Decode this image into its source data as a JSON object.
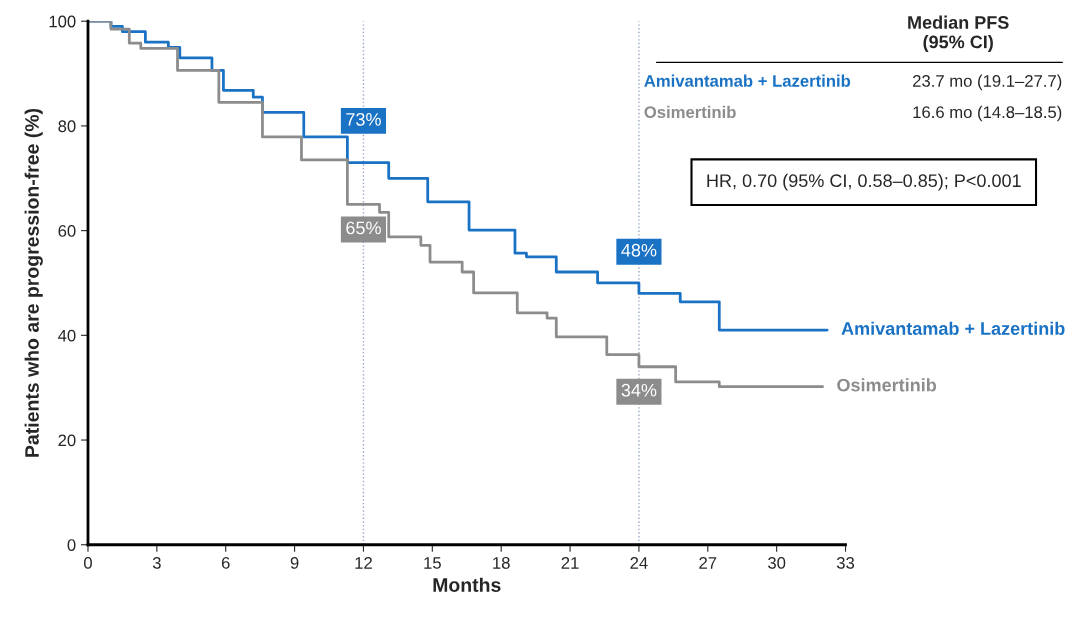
{
  "chart_data": {
    "type": "step",
    "xlabel": "Months",
    "ylabel": "Patients who are progression-free (%)",
    "xlim": [
      0,
      33
    ],
    "ylim": [
      0,
      100
    ],
    "xticks": [
      0,
      3,
      6,
      9,
      12,
      15,
      18,
      21,
      24,
      27,
      30,
      33
    ],
    "yticks": [
      0,
      20,
      40,
      60,
      80,
      100
    ],
    "grid": false,
    "legend": false,
    "line_style": "solid",
    "series": [
      {
        "name": "Amivantamab + Lazertinib",
        "color": "#1a72c4",
        "x": [
          0,
          1.0,
          1.5,
          2.5,
          3.5,
          4.0,
          5.4,
          5.9,
          7.2,
          7.6,
          9.4,
          11.3,
          12,
          12.6,
          13.1,
          14.8,
          16.6,
          18.6,
          19.1,
          20.4,
          22.2,
          24,
          25.8,
          27.5,
          32.2
        ],
        "values": [
          100,
          99,
          98,
          96,
          95,
          93,
          90.6,
          86.8,
          85.5,
          82.6,
          77.9,
          73,
          73,
          73,
          70,
          65.5,
          60.1,
          55.7,
          55,
          52.1,
          50,
          48,
          46.4,
          41,
          41
        ],
        "value_labels": [
          null,
          null,
          null,
          null,
          null,
          null,
          null,
          null,
          null,
          null,
          null,
          null,
          "73%",
          null,
          null,
          null,
          null,
          null,
          null,
          null,
          null,
          "48%",
          null,
          null,
          null
        ]
      },
      {
        "name": "Osimertinib",
        "color": "#8c8c8c",
        "x": [
          0,
          1.0,
          1.8,
          2.3,
          3.9,
          5.7,
          7.6,
          9.3,
          11.3,
          12,
          12.7,
          13.1,
          14.5,
          14.9,
          16.3,
          16.8,
          18.7,
          20.0,
          20.4,
          22.6,
          24,
          25.6,
          27.5,
          32.0
        ],
        "values": [
          100,
          98.5,
          95.8,
          94.8,
          90.6,
          84.5,
          77.9,
          73.5,
          65,
          65,
          63.5,
          58.8,
          57.2,
          54,
          52.1,
          48.1,
          44.3,
          43.3,
          39.7,
          36.3,
          34,
          31.1,
          30.2,
          30.2
        ],
        "value_labels": [
          null,
          null,
          null,
          null,
          null,
          null,
          null,
          null,
          null,
          "65%",
          null,
          null,
          null,
          null,
          null,
          null,
          null,
          null,
          null,
          null,
          "34%",
          null,
          null,
          null
        ]
      }
    ],
    "ref_lines": [
      {
        "axis": "x",
        "value": 12,
        "color": "#9aa6c8",
        "line_style": "dotted"
      },
      {
        "axis": "x",
        "value": 24,
        "color": "#9aa6c8",
        "line_style": "dotted"
      }
    ],
    "annotations": [
      "Median PFS\n(95% CI)",
      "23.7 mo (19.1–27.7)",
      "16.6 mo (14.8–18.5)",
      "HR, 0.70 (95% CI, 0.58–0.85); P<0.001"
    ]
  }
}
